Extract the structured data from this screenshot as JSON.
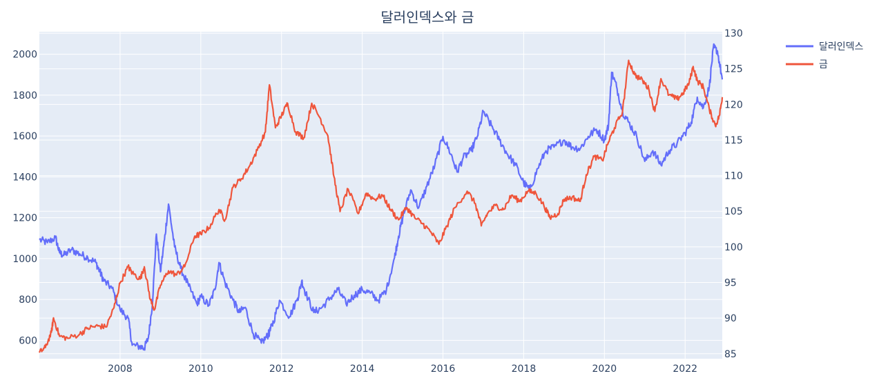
{
  "chart_data": {
    "type": "line",
    "title": "달러인덱스와 금",
    "xlabel": "",
    "ylabel": "",
    "y2label": "",
    "x_range": [
      2006.0,
      2022.92
    ],
    "y_left_range": [
      510,
      2110
    ],
    "y_right_range": [
      84.3,
      130.2
    ],
    "x_ticks": [
      2008,
      2010,
      2012,
      2014,
      2016,
      2018,
      2020,
      2022
    ],
    "y_left_ticks": [
      600,
      800,
      1000,
      1200,
      1400,
      1600,
      1800,
      2000
    ],
    "y_right_ticks": [
      85,
      90,
      95,
      100,
      105,
      110,
      115,
      120,
      125,
      130
    ],
    "grid": true,
    "legend_position": "top-right",
    "series": [
      {
        "name": "달러인덱스",
        "axis": "right",
        "color": "#636efa",
        "points": [
          [
            2006.0,
            101.0
          ],
          [
            2006.2,
            100.6
          ],
          [
            2006.4,
            101.3
          ],
          [
            2006.5,
            99.2
          ],
          [
            2006.6,
            98.8
          ],
          [
            2006.8,
            99.6
          ],
          [
            2007.0,
            99.0
          ],
          [
            2007.2,
            98.5
          ],
          [
            2007.4,
            97.8
          ],
          [
            2007.5,
            96.5
          ],
          [
            2007.6,
            95.2
          ],
          [
            2007.8,
            94.2
          ],
          [
            2008.0,
            91.2
          ],
          [
            2008.2,
            90.0
          ],
          [
            2008.3,
            86.2
          ],
          [
            2008.5,
            86.0
          ],
          [
            2008.6,
            85.8
          ],
          [
            2008.7,
            87.2
          ],
          [
            2008.8,
            92.0
          ],
          [
            2008.9,
            101.8
          ],
          [
            2009.0,
            96.5
          ],
          [
            2009.1,
            101.0
          ],
          [
            2009.2,
            106.0
          ],
          [
            2009.35,
            100.0
          ],
          [
            2009.5,
            97.0
          ],
          [
            2009.7,
            94.5
          ],
          [
            2009.9,
            92.0
          ],
          [
            2010.0,
            93.0
          ],
          [
            2010.2,
            91.8
          ],
          [
            2010.35,
            94.0
          ],
          [
            2010.45,
            97.8
          ],
          [
            2010.6,
            95.0
          ],
          [
            2010.8,
            92.5
          ],
          [
            2010.95,
            90.8
          ],
          [
            2011.1,
            91.5
          ],
          [
            2011.3,
            87.8
          ],
          [
            2011.5,
            86.5
          ],
          [
            2011.65,
            87.5
          ],
          [
            2011.7,
            88.0
          ],
          [
            2011.8,
            89.5
          ],
          [
            2011.95,
            92.5
          ],
          [
            2012.2,
            90.2
          ],
          [
            2012.4,
            92.8
          ],
          [
            2012.5,
            95.2
          ],
          [
            2012.6,
            93.5
          ],
          [
            2012.8,
            90.8
          ],
          [
            2013.0,
            91.5
          ],
          [
            2013.2,
            92.8
          ],
          [
            2013.4,
            94.0
          ],
          [
            2013.6,
            92.0
          ],
          [
            2013.8,
            93.2
          ],
          [
            2014.0,
            94.0
          ],
          [
            2014.2,
            93.5
          ],
          [
            2014.4,
            92.5
          ],
          [
            2014.6,
            94.0
          ],
          [
            2014.8,
            98.5
          ],
          [
            2014.9,
            101.5
          ],
          [
            2015.0,
            104.0
          ],
          [
            2015.2,
            108.0
          ],
          [
            2015.4,
            105.5
          ],
          [
            2015.6,
            108.5
          ],
          [
            2015.8,
            111.5
          ],
          [
            2016.0,
            115.5
          ],
          [
            2016.2,
            113.0
          ],
          [
            2016.35,
            110.5
          ],
          [
            2016.5,
            112.5
          ],
          [
            2016.7,
            113.5
          ],
          [
            2016.85,
            115.5
          ],
          [
            2017.0,
            119.0
          ],
          [
            2017.2,
            117.0
          ],
          [
            2017.4,
            115.0
          ],
          [
            2017.6,
            113.0
          ],
          [
            2017.8,
            111.5
          ],
          [
            2018.0,
            109.0
          ],
          [
            2018.15,
            108.0
          ],
          [
            2018.35,
            111.0
          ],
          [
            2018.55,
            113.5
          ],
          [
            2018.75,
            114.0
          ],
          [
            2019.0,
            115.0
          ],
          [
            2019.2,
            114.0
          ],
          [
            2019.4,
            113.8
          ],
          [
            2019.6,
            115.5
          ],
          [
            2019.8,
            116.5
          ],
          [
            2020.0,
            115.0
          ],
          [
            2020.1,
            117.0
          ],
          [
            2020.18,
            124.5
          ],
          [
            2020.3,
            122.5
          ],
          [
            2020.45,
            119.0
          ],
          [
            2020.6,
            117.5
          ],
          [
            2020.8,
            115.5
          ],
          [
            2021.0,
            112.0
          ],
          [
            2021.2,
            113.5
          ],
          [
            2021.4,
            111.5
          ],
          [
            2021.6,
            113.5
          ],
          [
            2021.8,
            114.5
          ],
          [
            2022.0,
            116.0
          ],
          [
            2022.15,
            117.5
          ],
          [
            2022.3,
            121.0
          ],
          [
            2022.45,
            119.5
          ],
          [
            2022.6,
            122.5
          ],
          [
            2022.7,
            128.0
          ],
          [
            2022.8,
            127.5
          ],
          [
            2022.92,
            123.5
          ]
        ]
      },
      {
        "name": "금",
        "axis": "left",
        "color": "#ef553b",
        "points": [
          [
            2006.0,
            540
          ],
          [
            2006.15,
            565
          ],
          [
            2006.3,
            640
          ],
          [
            2006.35,
            710
          ],
          [
            2006.5,
            620
          ],
          [
            2006.7,
            610
          ],
          [
            2007.0,
            630
          ],
          [
            2007.2,
            660
          ],
          [
            2007.45,
            670
          ],
          [
            2007.65,
            665
          ],
          [
            2007.85,
            760
          ],
          [
            2008.0,
            880
          ],
          [
            2008.2,
            960
          ],
          [
            2008.3,
            930
          ],
          [
            2008.5,
            900
          ],
          [
            2008.6,
            960
          ],
          [
            2008.75,
            800
          ],
          [
            2008.85,
            750
          ],
          [
            2009.0,
            870
          ],
          [
            2009.2,
            940
          ],
          [
            2009.4,
            920
          ],
          [
            2009.6,
            960
          ],
          [
            2009.85,
            1110
          ],
          [
            2010.0,
            1120
          ],
          [
            2010.2,
            1150
          ],
          [
            2010.45,
            1240
          ],
          [
            2010.6,
            1190
          ],
          [
            2010.8,
            1350
          ],
          [
            2011.0,
            1390
          ],
          [
            2011.2,
            1450
          ],
          [
            2011.4,
            1530
          ],
          [
            2011.6,
            1620
          ],
          [
            2011.7,
            1850
          ],
          [
            2011.85,
            1640
          ],
          [
            2012.0,
            1700
          ],
          [
            2012.15,
            1760
          ],
          [
            2012.35,
            1620
          ],
          [
            2012.55,
            1590
          ],
          [
            2012.75,
            1760
          ],
          [
            2012.95,
            1690
          ],
          [
            2013.15,
            1600
          ],
          [
            2013.3,
            1400
          ],
          [
            2013.45,
            1230
          ],
          [
            2013.65,
            1340
          ],
          [
            2013.9,
            1220
          ],
          [
            2014.1,
            1320
          ],
          [
            2014.3,
            1290
          ],
          [
            2014.5,
            1310
          ],
          [
            2014.7,
            1240
          ],
          [
            2014.9,
            1190
          ],
          [
            2015.1,
            1250
          ],
          [
            2015.3,
            1200
          ],
          [
            2015.5,
            1170
          ],
          [
            2015.7,
            1130
          ],
          [
            2015.9,
            1070
          ],
          [
            2016.1,
            1160
          ],
          [
            2016.3,
            1250
          ],
          [
            2016.6,
            1330
          ],
          [
            2016.8,
            1270
          ],
          [
            2016.95,
            1160
          ],
          [
            2017.1,
            1220
          ],
          [
            2017.3,
            1260
          ],
          [
            2017.5,
            1240
          ],
          [
            2017.7,
            1310
          ],
          [
            2017.9,
            1280
          ],
          [
            2018.1,
            1330
          ],
          [
            2018.3,
            1320
          ],
          [
            2018.5,
            1260
          ],
          [
            2018.65,
            1200
          ],
          [
            2018.85,
            1220
          ],
          [
            2019.0,
            1290
          ],
          [
            2019.2,
            1300
          ],
          [
            2019.4,
            1280
          ],
          [
            2019.55,
            1410
          ],
          [
            2019.75,
            1500
          ],
          [
            2019.95,
            1480
          ],
          [
            2020.1,
            1570
          ],
          [
            2020.25,
            1640
          ],
          [
            2020.45,
            1720
          ],
          [
            2020.6,
            1970
          ],
          [
            2020.75,
            1900
          ],
          [
            2020.95,
            1870
          ],
          [
            2021.1,
            1830
          ],
          [
            2021.25,
            1720
          ],
          [
            2021.4,
            1880
          ],
          [
            2021.6,
            1800
          ],
          [
            2021.8,
            1780
          ],
          [
            2021.95,
            1810
          ],
          [
            2022.1,
            1860
          ],
          [
            2022.2,
            1940
          ],
          [
            2022.3,
            1870
          ],
          [
            2022.45,
            1840
          ],
          [
            2022.6,
            1730
          ],
          [
            2022.75,
            1650
          ],
          [
            2022.85,
            1700
          ],
          [
            2022.92,
            1790
          ]
        ]
      }
    ]
  }
}
